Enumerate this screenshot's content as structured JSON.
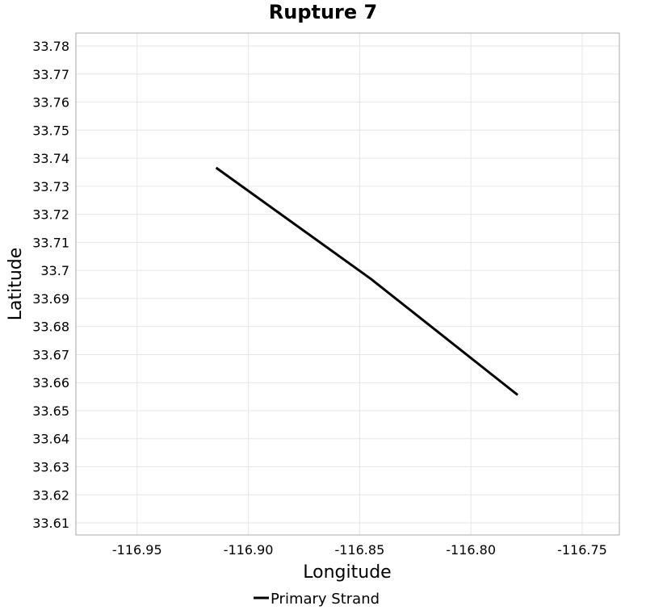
{
  "chart_data": {
    "type": "line",
    "title": "Rupture 7",
    "xlabel": "Longitude",
    "ylabel": "Latitude",
    "xlim": [
      -116.9775,
      -116.7333
    ],
    "ylim": [
      33.6057,
      33.7846
    ],
    "xticks": [
      -116.95,
      -116.9,
      -116.85,
      -116.8,
      -116.75
    ],
    "xtick_labels": [
      "-116.95",
      "-116.90",
      "-116.85",
      "-116.80",
      "-116.75"
    ],
    "yticks": [
      33.61,
      33.62,
      33.63,
      33.64,
      33.65,
      33.66,
      33.67,
      33.68,
      33.69,
      33.7,
      33.71,
      33.72,
      33.73,
      33.74,
      33.75,
      33.76,
      33.77,
      33.78
    ],
    "ytick_labels": [
      "33.61",
      "33.62",
      "33.63",
      "33.64",
      "33.65",
      "33.66",
      "33.67",
      "33.68",
      "33.69",
      "33.7",
      "33.71",
      "33.72",
      "33.73",
      "33.74",
      "33.75",
      "33.76",
      "33.77",
      "33.78"
    ],
    "grid": true,
    "legend_position": "bottom-center",
    "series": [
      {
        "name": "Primary Strand",
        "color": "#000000",
        "x": [
          -116.9145,
          -116.845,
          -116.779
        ],
        "y": [
          33.7366,
          33.697,
          33.6556
        ]
      }
    ]
  }
}
